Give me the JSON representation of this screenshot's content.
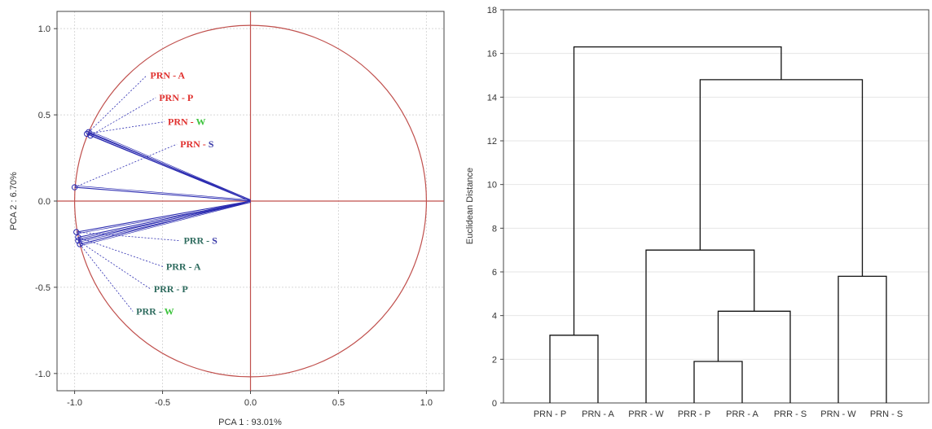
{
  "chart_data": [
    {
      "type": "scatter",
      "xlabel": "PCA 1 : 93.01%",
      "ylabel": "PCA 2 : 6.70%",
      "xlim": [
        -1.1,
        1.1
      ],
      "ylim": [
        -1.1,
        1.1
      ],
      "xticks": [
        "-1.0",
        "-0.5",
        "0.0",
        "0.5",
        "1.0"
      ],
      "yticks": [
        "1.0",
        "0.5",
        "0.0",
        "-0.5",
        "-1.0"
      ],
      "grid": true,
      "unit_circle": true,
      "colors": {
        "circle": "#c0504d",
        "vector": "#2b2bb0",
        "prn": "#e0302e",
        "prr": "#2e6b5e",
        "w": "#3ec43e",
        "s": "#3a3aa8"
      },
      "points": [
        {
          "prefix": "PRN",
          "sep": " - ",
          "suffix": "A",
          "x": -0.92,
          "y": 0.4,
          "label_x": -0.57,
          "label_y": 0.73,
          "prefix_color": "#e0302e",
          "suffix_color": "#e0302e"
        },
        {
          "prefix": "PRN",
          "sep": " - ",
          "suffix": "P",
          "x": -0.91,
          "y": 0.38,
          "label_x": -0.52,
          "label_y": 0.6,
          "prefix_color": "#e0302e",
          "suffix_color": "#e0302e"
        },
        {
          "prefix": "PRN",
          "sep": " - ",
          "suffix": "W",
          "x": -0.93,
          "y": 0.39,
          "label_x": -0.47,
          "label_y": 0.46,
          "prefix_color": "#e0302e",
          "suffix_color": "#3ec43e"
        },
        {
          "prefix": "PRN",
          "sep": " - ",
          "suffix": "S",
          "x": -1.0,
          "y": 0.08,
          "label_x": -0.4,
          "label_y": 0.33,
          "prefix_color": "#e0302e",
          "suffix_color": "#3a3aa8"
        },
        {
          "prefix": "PRR",
          "sep": " - ",
          "suffix": "S",
          "x": -0.99,
          "y": -0.18,
          "label_x": -0.38,
          "label_y": -0.23,
          "prefix_color": "#2e6b5e",
          "suffix_color": "#3a3aa8"
        },
        {
          "prefix": "PRR",
          "sep": " - ",
          "suffix": "A",
          "x": -0.98,
          "y": -0.21,
          "label_x": -0.48,
          "label_y": -0.38,
          "prefix_color": "#2e6b5e",
          "suffix_color": "#2e6b5e"
        },
        {
          "prefix": "PRR",
          "sep": " - ",
          "suffix": "P",
          "x": -0.98,
          "y": -0.23,
          "label_x": -0.55,
          "label_y": -0.51,
          "prefix_color": "#2e6b5e",
          "suffix_color": "#2e6b5e"
        },
        {
          "prefix": "PRR",
          "sep": " - ",
          "suffix": "W",
          "x": -0.97,
          "y": -0.25,
          "label_x": -0.65,
          "label_y": -0.64,
          "prefix_color": "#2e6b5e",
          "suffix_color": "#3ec43e"
        }
      ]
    },
    {
      "type": "dendrogram",
      "ylabel": "Euclidean Distance",
      "ylim": [
        0,
        18
      ],
      "yticks": [
        0,
        2,
        4,
        6,
        8,
        10,
        12,
        14,
        16,
        18
      ],
      "leaves": [
        "PRN - P",
        "PRN - A",
        "PRR - W",
        "PRR - P",
        "PRR - A",
        "PRR - S",
        "PRN - W",
        "PRN - S"
      ],
      "merges": [
        {
          "id": "n1",
          "left": 3,
          "right": 4,
          "height": 1.9
        },
        {
          "id": "n2",
          "left": 0,
          "right": 1,
          "height": 3.1
        },
        {
          "id": "n3",
          "left": "n1",
          "right": 5,
          "height": 4.2
        },
        {
          "id": "n4",
          "left": 6,
          "right": 7,
          "height": 5.8
        },
        {
          "id": "n5",
          "left": 2,
          "right": "n3",
          "height": 7.0
        },
        {
          "id": "n6",
          "left": "n5",
          "right": "n4",
          "height": 14.8
        },
        {
          "id": "n7",
          "left": "n2",
          "right": "n6",
          "height": 16.3
        }
      ]
    }
  ]
}
